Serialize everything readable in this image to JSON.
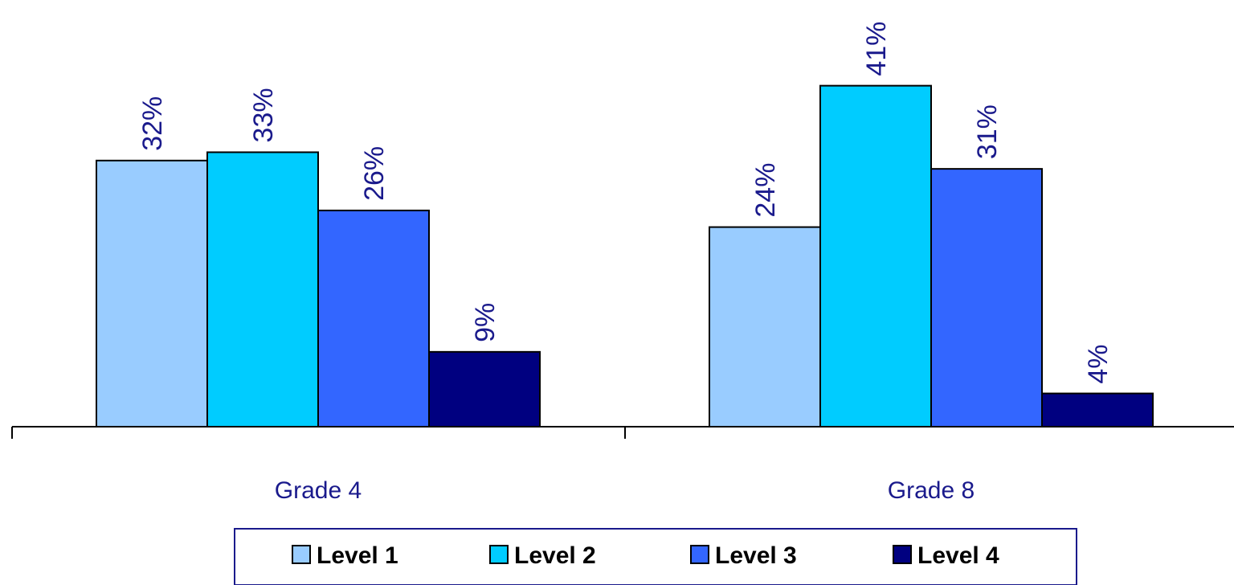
{
  "chart_data": {
    "type": "bar",
    "categories": [
      "Grade 4",
      "Grade 8"
    ],
    "series": [
      {
        "name": "Level 1",
        "values": [
          32,
          24
        ],
        "color": "#99ccff",
        "value_labels": [
          "32%",
          "24%"
        ]
      },
      {
        "name": "Level 2",
        "values": [
          33,
          41
        ],
        "color": "#00ccff",
        "value_labels": [
          "33%",
          "41%"
        ]
      },
      {
        "name": "Level 3",
        "values": [
          26,
          31
        ],
        "color": "#3366ff",
        "value_labels": [
          "26%",
          "31%"
        ]
      },
      {
        "name": "Level 4",
        "values": [
          9,
          4
        ],
        "color": "#000080",
        "value_labels": [
          "9%",
          "4%"
        ]
      }
    ],
    "ylim": [
      0,
      50
    ],
    "value_unit": "%",
    "title": "",
    "xlabel": "",
    "ylabel": "",
    "grid": false,
    "legend_position": "bottom",
    "label_color": "#1a1a8c"
  }
}
